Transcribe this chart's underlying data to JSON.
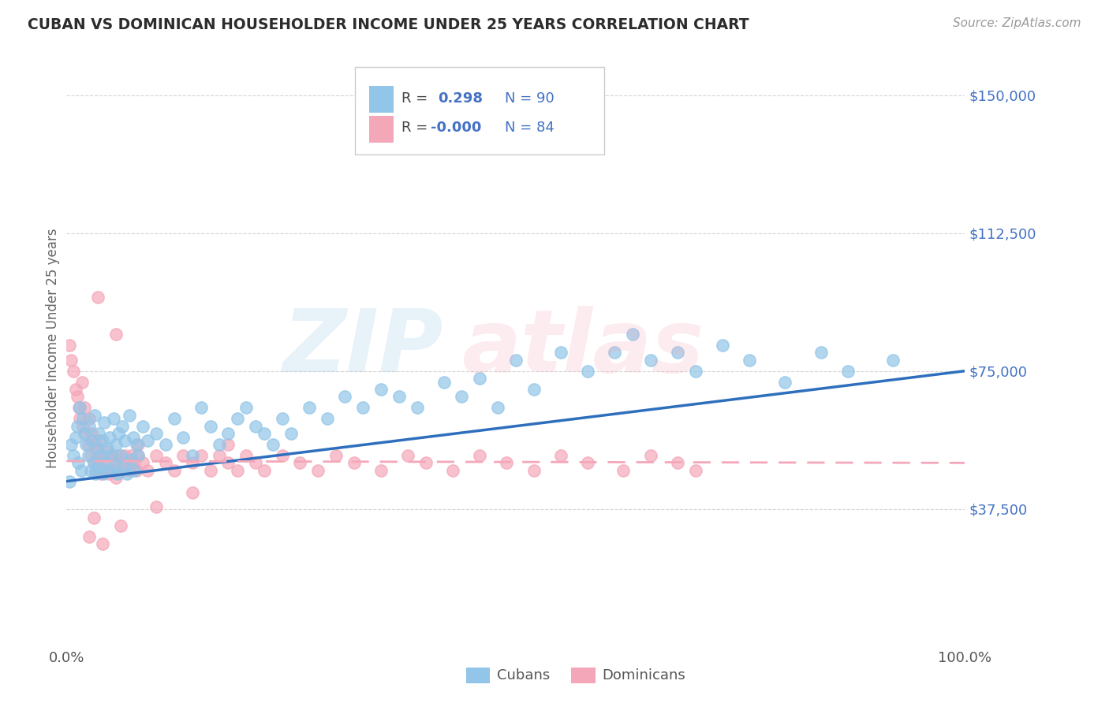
{
  "title": "CUBAN VS DOMINICAN HOUSEHOLDER INCOME UNDER 25 YEARS CORRELATION CHART",
  "source": "Source: ZipAtlas.com",
  "ylabel": "Householder Income Under 25 years",
  "xlim": [
    0.0,
    100.0
  ],
  "ylim": [
    0,
    162500
  ],
  "yticks": [
    37500,
    75000,
    112500,
    150000
  ],
  "ytick_labels": [
    "$37,500",
    "$75,000",
    "$112,500",
    "$150,000"
  ],
  "xtick_labels": [
    "0.0%",
    "100.0%"
  ],
  "color_cubans": "#92c5e8",
  "color_dominicans": "#f4a7b9",
  "color_line_cubans": "#2e6fbd",
  "color_line_dominicans": "#f4a7b9",
  "color_blue_text": "#4472c4",
  "watermark_color_zip": "#92c5e8",
  "watermark_color_atlas": "#f4a7b9",
  "background": "#ffffff",
  "grid_color": "#cccccc",
  "title_color": "#2c2c2c",
  "cubans_x": [
    0.3,
    0.5,
    0.8,
    1.0,
    1.2,
    1.3,
    1.5,
    1.6,
    1.8,
    2.0,
    2.2,
    2.4,
    2.5,
    2.7,
    2.8,
    3.0,
    3.1,
    3.2,
    3.4,
    3.5,
    3.6,
    3.8,
    4.0,
    4.1,
    4.2,
    4.4,
    4.5,
    4.7,
    4.8,
    5.0,
    5.2,
    5.4,
    5.5,
    5.7,
    5.8,
    6.0,
    6.2,
    6.4,
    6.5,
    6.7,
    7.0,
    7.2,
    7.4,
    7.5,
    7.8,
    8.0,
    8.5,
    9.0,
    10.0,
    11.0,
    12.0,
    13.0,
    14.0,
    15.0,
    16.0,
    17.0,
    18.0,
    19.0,
    20.0,
    21.0,
    22.0,
    23.0,
    24.0,
    25.0,
    27.0,
    29.0,
    31.0,
    33.0,
    35.0,
    37.0,
    39.0,
    42.0,
    44.0,
    46.0,
    48.0,
    50.0,
    52.0,
    55.0,
    58.0,
    61.0,
    63.0,
    65.0,
    68.0,
    70.0,
    73.0,
    76.0,
    80.0,
    84.0,
    87.0,
    92.0
  ],
  "cubans_y": [
    45000,
    55000,
    52000,
    57000,
    60000,
    50000,
    65000,
    48000,
    62000,
    58000,
    55000,
    52000,
    60000,
    48000,
    56000,
    50000,
    63000,
    47000,
    54000,
    49000,
    58000,
    52000,
    56000,
    47000,
    61000,
    50000,
    54000,
    48000,
    57000,
    52000,
    62000,
    49000,
    55000,
    47000,
    58000,
    52000,
    60000,
    49000,
    56000,
    47000,
    63000,
    51000,
    57000,
    48000,
    55000,
    52000,
    60000,
    56000,
    58000,
    55000,
    62000,
    57000,
    52000,
    65000,
    60000,
    55000,
    58000,
    62000,
    65000,
    60000,
    58000,
    55000,
    62000,
    58000,
    65000,
    62000,
    68000,
    65000,
    70000,
    68000,
    65000,
    72000,
    68000,
    73000,
    65000,
    78000,
    70000,
    80000,
    75000,
    80000,
    85000,
    78000,
    80000,
    75000,
    82000,
    78000,
    72000,
    80000,
    75000,
    78000
  ],
  "dominicans_x": [
    0.3,
    0.5,
    0.8,
    1.0,
    1.2,
    1.4,
    1.5,
    1.7,
    1.8,
    2.0,
    2.2,
    2.4,
    2.5,
    2.7,
    2.8,
    3.0,
    3.1,
    3.2,
    3.4,
    3.5,
    3.7,
    3.8,
    4.0,
    4.2,
    4.4,
    4.5,
    4.7,
    5.0,
    5.2,
    5.4,
    5.5,
    5.7,
    6.0,
    6.2,
    6.5,
    6.7,
    7.0,
    7.2,
    7.5,
    7.8,
    8.0,
    8.5,
    9.0,
    10.0,
    11.0,
    12.0,
    13.0,
    14.0,
    15.0,
    16.0,
    17.0,
    18.0,
    19.0,
    20.0,
    21.0,
    22.0,
    24.0,
    26.0,
    28.0,
    30.0,
    32.0,
    35.0,
    38.0,
    40.0,
    43.0,
    46.0,
    49.0,
    52.0,
    55.0,
    58.0,
    62.0,
    65.0,
    68.0,
    70.0,
    3.5,
    5.5,
    8.0,
    18.0,
    2.5,
    4.0,
    3.0,
    6.0,
    10.0,
    14.0
  ],
  "dominicans_y": [
    82000,
    78000,
    75000,
    70000,
    68000,
    65000,
    62000,
    72000,
    60000,
    65000,
    58000,
    55000,
    62000,
    52000,
    58000,
    50000,
    55000,
    48000,
    53000,
    50000,
    56000,
    47000,
    52000,
    50000,
    48000,
    53000,
    47000,
    52000,
    48000,
    50000,
    46000,
    52000,
    50000,
    48000,
    52000,
    50000,
    48000,
    52000,
    50000,
    48000,
    52000,
    50000,
    48000,
    52000,
    50000,
    48000,
    52000,
    50000,
    52000,
    48000,
    52000,
    50000,
    48000,
    52000,
    50000,
    48000,
    52000,
    50000,
    48000,
    52000,
    50000,
    48000,
    52000,
    50000,
    48000,
    52000,
    50000,
    48000,
    52000,
    50000,
    48000,
    52000,
    50000,
    48000,
    95000,
    85000,
    55000,
    55000,
    30000,
    28000,
    35000,
    33000,
    38000,
    42000
  ]
}
